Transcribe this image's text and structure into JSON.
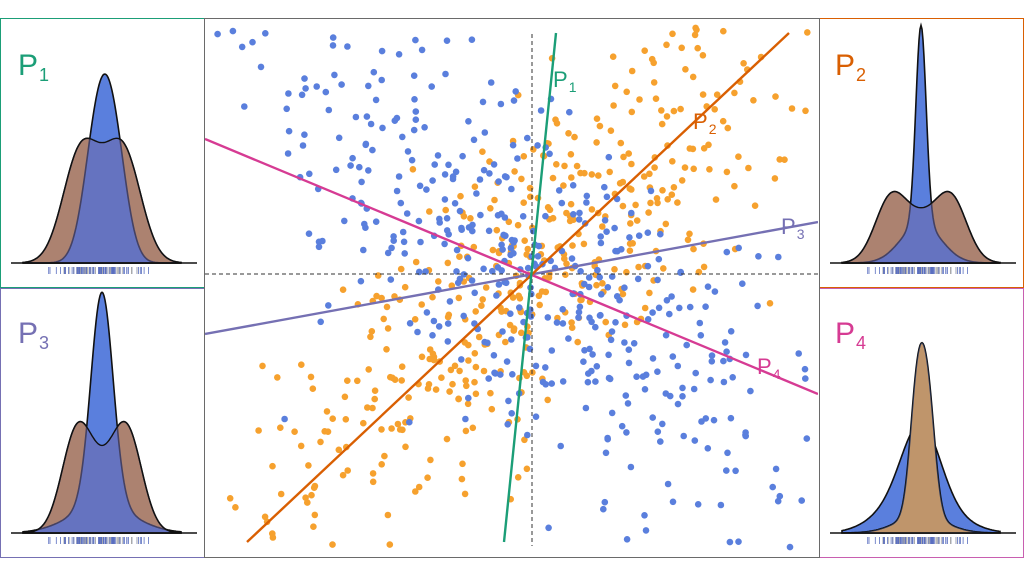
{
  "colors": {
    "blue_class": "#5a7fdd",
    "orange_class": "#f6a12e",
    "overlap": "#6f6aa8",
    "P1": "#1b9e77",
    "P2": "#d95f02",
    "P3": "#7570b3",
    "P4": "#d63b93",
    "axis": "#333333"
  },
  "projections": [
    {
      "id": "P1",
      "letter": "P",
      "sub": "1",
      "color": "#1b9e77",
      "angle_deg": 86
    },
    {
      "id": "P2",
      "letter": "P",
      "sub": "2",
      "color": "#d95f02",
      "angle_deg": 42
    },
    {
      "id": "P3",
      "letter": "P",
      "sub": "3",
      "color": "#7570b3",
      "angle_deg": 12
    },
    {
      "id": "P4",
      "letter": "P",
      "sub": "4",
      "color": "#d63b93",
      "angle_deg": -22
    }
  ],
  "chart_data": {
    "type": "scatter",
    "series": [
      {
        "color": "#5a7fdd",
        "distribution": "elongated along -45° axis"
      },
      {
        "color": "#f6a12e",
        "distribution": "elongated along +45° axis"
      }
    ],
    "dashed_axes": true,
    "density_panels": {
      "P1": {
        "blue": "unimodal, tall",
        "orange": "wide, flat-topped"
      },
      "P2": {
        "blue": "sharp narrow peak",
        "orange": "bimodal"
      },
      "P3": {
        "blue": "tall peak",
        "orange": "bimodal shoulders"
      },
      "P4": {
        "blue": "wide",
        "orange": "tall narrow peak"
      }
    }
  }
}
